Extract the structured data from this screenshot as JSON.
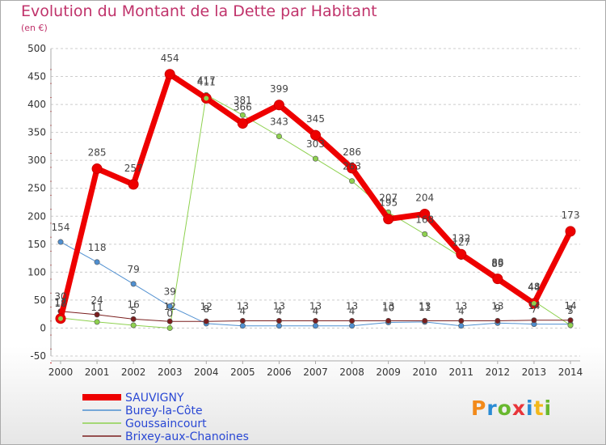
{
  "chart_data": {
    "type": "line",
    "title": "Evolution du Montant de la Dette par Habitant",
    "subtitle": "(en €)",
    "x": [
      "2000",
      "2001",
      "2002",
      "2003",
      "2004",
      "2005",
      "2006",
      "2007",
      "2008",
      "2009",
      "2010",
      "2011",
      "2012",
      "2013",
      "2014"
    ],
    "ylim": [
      -50,
      500
    ],
    "yticks": [
      -50,
      0,
      50,
      100,
      150,
      200,
      250,
      300,
      350,
      400,
      450,
      500
    ],
    "grid": "horizontal dashed",
    "legend_position": "bottom-left",
    "series": [
      {
        "name": "SAUVIGNY",
        "color": "#ee0000",
        "values": [
          17,
          285,
          257,
          454,
          411,
          366,
          399,
          345,
          286,
          195,
          204,
          132,
          88,
          44,
          173
        ],
        "labels": [
          "17",
          "285",
          "257",
          "454",
          "411",
          "366",
          "399",
          "345",
          "286",
          "195",
          "204",
          "132",
          "88",
          "44",
          "173"
        ]
      },
      {
        "name": "Burey-la-Côte",
        "color": "#4f8fd0",
        "values": [
          154,
          118,
          79,
          39,
          8,
          4,
          4,
          4,
          4,
          10,
          11,
          4,
          9,
          7,
          7
        ],
        "labels": [
          "154",
          "118",
          "79",
          "39",
          "8",
          "4",
          "4",
          "4",
          "4",
          "10",
          "11",
          "4",
          "9",
          "7",
          "7"
        ]
      },
      {
        "name": "Goussaincourt",
        "color": "#8ed14f",
        "values": [
          18,
          11,
          5,
          0,
          417,
          381,
          343,
          303,
          263,
          207,
          168,
          127,
          89,
          48,
          5
        ],
        "labels": [
          "18",
          "11",
          "5",
          "0",
          "417",
          "381",
          "343",
          "303",
          "263",
          "207",
          "168",
          "127",
          "89",
          "48",
          "5"
        ]
      },
      {
        "name": "Brixey-aux-Chanoines",
        "color": "#7a1e1e",
        "values": [
          30,
          24,
          16,
          12,
          12,
          13,
          13,
          13,
          13,
          13,
          13,
          13,
          13,
          14,
          14
        ],
        "labels": [
          "30",
          "24",
          "16",
          "12",
          "12",
          "13",
          "13",
          "13",
          "13",
          "13",
          "13",
          "13",
          "13",
          "14",
          "14"
        ]
      }
    ]
  },
  "logo": {
    "p": "P",
    "r": "r",
    "o": "o",
    "x": "x",
    "i1": "i",
    "t": "t",
    "i2": "i"
  }
}
